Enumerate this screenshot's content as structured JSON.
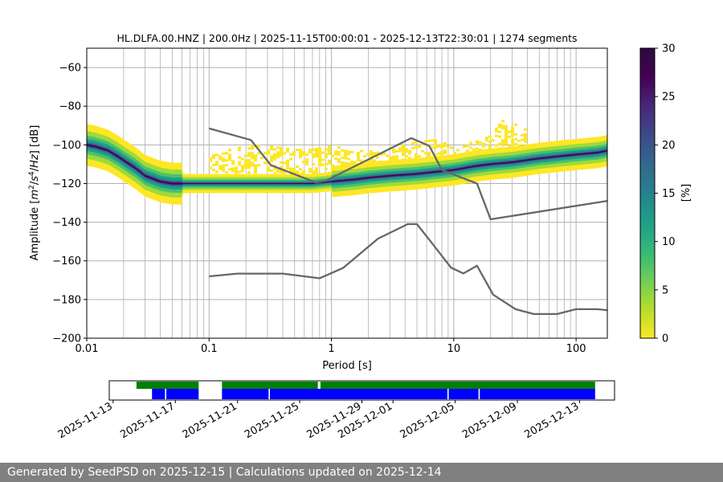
{
  "chart_data": [
    {
      "type": "heatmap",
      "title": "HL.DLFA.00.HNZ | 200.0Hz | 2025-11-15T00:00:01 - 2025-12-13T22:30:01 | 1274 segments",
      "xlabel": "Period [s]",
      "ylabel": "Amplitude [m²/s⁴/Hz] [dB]",
      "xscale": "log",
      "xlim": [
        0.01,
        180
      ],
      "ylim": [
        -200,
        -50
      ],
      "xticks": [
        {
          "v": 0.01,
          "label": "0.01"
        },
        {
          "v": 0.1,
          "label": "0.1"
        },
        {
          "v": 1,
          "label": "1"
        },
        {
          "v": 10,
          "label": "10"
        },
        {
          "v": 100,
          "label": "100"
        }
      ],
      "yticks": [
        {
          "v": -60,
          "label": "−60"
        },
        {
          "v": -80,
          "label": "−80"
        },
        {
          "v": -100,
          "label": "−100"
        },
        {
          "v": -120,
          "label": "−120"
        },
        {
          "v": -140,
          "label": "−140"
        },
        {
          "v": -160,
          "label": "−160"
        },
        {
          "v": -180,
          "label": "−180"
        },
        {
          "v": -200,
          "label": "−200"
        }
      ],
      "grid": true,
      "colorbar": {
        "label": "[%]",
        "range": [
          0,
          30
        ],
        "ticks": [
          {
            "v": 0,
            "label": "0"
          },
          {
            "v": 5,
            "label": "5"
          },
          {
            "v": 10,
            "label": "10"
          },
          {
            "v": 15,
            "label": "15"
          },
          {
            "v": 20,
            "label": "20"
          },
          {
            "v": 25,
            "label": "25"
          },
          {
            "v": 30,
            "label": "30"
          }
        ],
        "colormap": "viridis_r"
      },
      "mode_curve": {
        "x": [
          0.01,
          0.012,
          0.015,
          0.018,
          0.02,
          0.025,
          0.03,
          0.04,
          0.05,
          0.07,
          0.1,
          0.15,
          0.2,
          0.3,
          0.5,
          0.7,
          1,
          1.5,
          2,
          3,
          5,
          7,
          10,
          15,
          20,
          30,
          50,
          70,
          100,
          150,
          180
        ],
        "y": [
          -100,
          -101,
          -103,
          -106,
          -108,
          -112,
          -116,
          -119,
          -120,
          -120,
          -120,
          -120,
          -120,
          -120,
          -120,
          -120,
          -119,
          -118,
          -117,
          -116,
          -115,
          -114,
          -113,
          -111,
          -110,
          -109,
          -107,
          -106,
          -105,
          -104,
          -103
        ]
      },
      "scatter_band": {
        "x": [
          0.1,
          0.15,
          0.2,
          0.3,
          0.5,
          0.7,
          1,
          1.5,
          2,
          3,
          5,
          7,
          10,
          15,
          20,
          25,
          30,
          40
        ],
        "top": [
          -104,
          -102,
          -100,
          -100,
          -102,
          -102,
          -100,
          -102,
          -103,
          -101,
          -98,
          -97,
          -100,
          -98,
          -95,
          -87,
          -88,
          -92
        ],
        "bottom": [
          -113,
          -114,
          -114,
          -114,
          -115,
          -115,
          -114,
          -113,
          -112,
          -112,
          -112,
          -111,
          -110,
          -110,
          -108,
          -107,
          -106,
          -106
        ]
      },
      "reference_curves": [
        {
          "x": [
            0.1,
            0.22,
            0.32,
            0.75,
            0.9,
            4.5,
            6.3,
            8,
            15.5,
            20,
            180
          ],
          "y": [
            -91.5,
            -97.5,
            -110.5,
            -119.5,
            -118.5,
            -96.5,
            -100.5,
            -113,
            -120,
            -138.5,
            -129
          ]
        },
        {
          "x": [
            0.1,
            0.17,
            0.4,
            0.8,
            1.25,
            2.4,
            4.2,
            5,
            6.3,
            9.5,
            12,
            15.5,
            21,
            32,
            45,
            70,
            100,
            150,
            180
          ],
          "y": [
            -168,
            -166.6,
            -166.6,
            -169,
            -163.6,
            -148.5,
            -141,
            -141,
            -149,
            -163.5,
            -166.5,
            -162.5,
            -177.5,
            -185,
            -187.5,
            -187.5,
            -185,
            -185,
            -185.5
          ]
        }
      ]
    },
    {
      "type": "bar",
      "subtype": "timeline",
      "xticks": [
        "2025-11-13",
        "2025-11-17",
        "2025-11-21",
        "2025-11-25",
        "2025-11-29",
        "2025-12-01",
        "2025-12-05",
        "2025-12-09",
        "2025-12-13"
      ],
      "xlim": [
        "2025-11-12T18:00",
        "2025-12-15T06:00"
      ],
      "green_bars": [
        [
          "2025-11-14T12:00",
          "2025-11-18T12:00"
        ],
        [
          "2025-11-20T00:00",
          "2025-11-26T04:00"
        ],
        [
          "2025-11-26T08:00",
          "2025-12-14T00:00"
        ]
      ],
      "blue_bars": [
        [
          "2025-11-15T12:00",
          "2025-11-16T08:00"
        ],
        [
          "2025-11-16T10:00",
          "2025-11-18T12:00"
        ],
        [
          "2025-11-20T00:00",
          "2025-11-23T00:00"
        ],
        [
          "2025-11-23T02:00",
          "2025-12-04T12:00"
        ],
        [
          "2025-12-04T14:00",
          "2025-12-06T12:00"
        ],
        [
          "2025-12-06T14:00",
          "2025-12-14T00:00"
        ]
      ],
      "colors": {
        "green": "#008000",
        "blue": "#0000ff"
      }
    }
  ],
  "footer": {
    "text": "Generated by SeedPSD on 2025-12-15 | Calculations updated on 2025-12-14"
  }
}
